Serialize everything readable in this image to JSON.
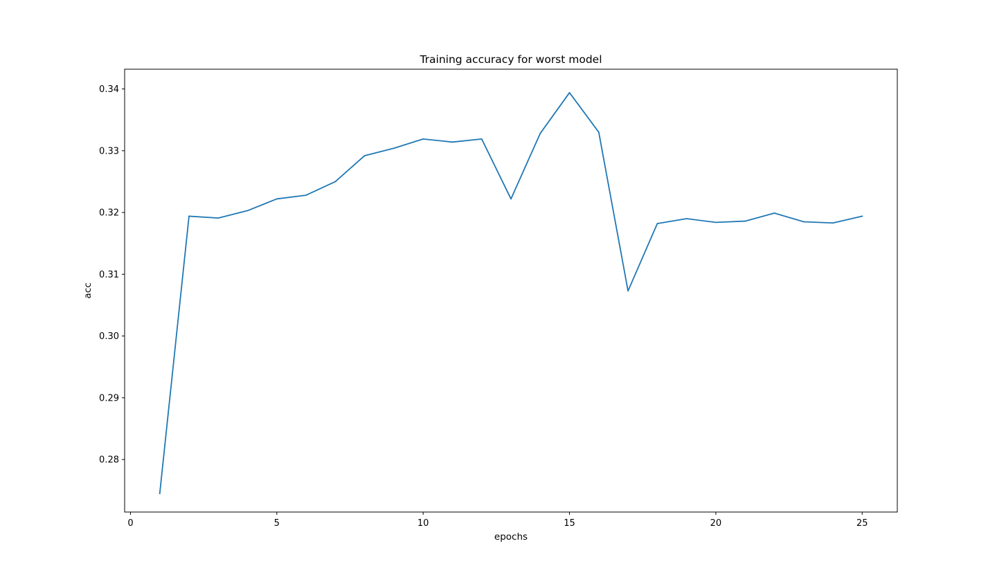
{
  "chart_data": {
    "type": "line",
    "title": "Training accuracy for worst model",
    "xlabel": "epochs",
    "ylabel": "acc",
    "xlim": [
      -0.2,
      26.2
    ],
    "ylim": [
      0.2715,
      0.3432
    ],
    "x_ticks": [
      0,
      5,
      10,
      15,
      20,
      25
    ],
    "y_ticks": [
      0.28,
      0.29,
      0.3,
      0.31,
      0.32,
      0.33,
      0.34
    ],
    "x_tick_labels": [
      "0",
      "5",
      "10",
      "15",
      "20",
      "25"
    ],
    "y_tick_labels": [
      "0.28",
      "0.29",
      "0.30",
      "0.31",
      "0.32",
      "0.33",
      "0.34"
    ],
    "grid": false,
    "series": [
      {
        "color": "#1f77b4",
        "x": [
          1,
          2,
          3,
          4,
          5,
          6,
          7,
          8,
          9,
          10,
          11,
          12,
          13,
          14,
          15,
          16,
          17,
          18,
          19,
          20,
          21,
          22,
          23,
          24,
          25
        ],
        "y": [
          0.2745,
          0.3194,
          0.3191,
          0.3203,
          0.3222,
          0.3228,
          0.325,
          0.3292,
          0.3304,
          0.3319,
          0.3314,
          0.3319,
          0.3222,
          0.3328,
          0.3394,
          0.333,
          0.3073,
          0.3182,
          0.319,
          0.3184,
          0.3186,
          0.3199,
          0.3185,
          0.3183,
          0.3194
        ]
      }
    ]
  }
}
